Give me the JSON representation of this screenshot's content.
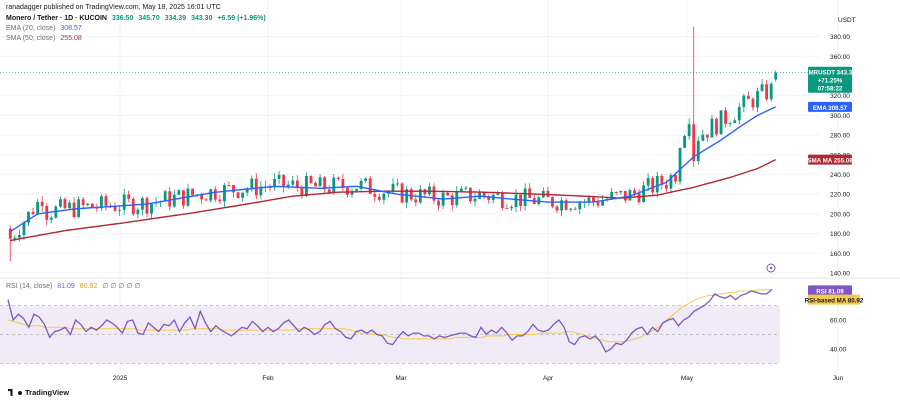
{
  "header": {
    "publisher": "ranadagger published on TradingView.com, May 18, 2025 16:01 UTC",
    "symbol": "Monero / Tether · 1D · KUCOIN",
    "ohlc": [
      "336.50",
      "345.70",
      "334.39",
      "343.30",
      "+6.59 (+1.96%)"
    ],
    "ema_label": "EMA (20, close)",
    "ema_value": "308.57",
    "sma_label": "SMA (50, close)",
    "sma_value": "255.08",
    "rsi_label": "RSI (14, close)",
    "rsi_value": "81.09",
    "rsi_ma_value": "80.92"
  },
  "price_axis": {
    "unit": "USDT",
    "ticks": [
      "380.00",
      "360.00",
      "320.00",
      "300.00",
      "280.00",
      "260.00",
      "240.00",
      "220.00",
      "200.00",
      "180.00",
      "160.00",
      "140.00"
    ]
  },
  "rsi_axis": {
    "ticks": [
      "60.00",
      "40.00"
    ]
  },
  "time_axis": {
    "labels": [
      "2025",
      "Feb",
      "Mar",
      "Apr",
      "May",
      "Jun"
    ]
  },
  "badges": {
    "price_symbol": "XMRUSDT",
    "price_value": "343.30",
    "price_change": "+71.25%",
    "price_countdown": "07:58:22",
    "ema_name": "EMA",
    "ema_value": "308.57",
    "sma_name": "SMA MA",
    "sma_value": "255.08",
    "rsi_name": "RSI",
    "rsi_value": "81.09",
    "rsi_ma_name": "RSI-based MA",
    "rsi_ma_value": "80.92"
  },
  "footer": {
    "brand": "TradingView"
  },
  "colors": {
    "up": "#089981",
    "down": "#f23645",
    "ema": "#2962ff",
    "sma": "#b22833",
    "rsi": "#7e57c2",
    "rsi_ma": "#f7c948",
    "rsi_band": "#ede7f6"
  },
  "chart_data": [
    {
      "type": "candlestick",
      "title": "Monero / Tether · 1D · KUCOIN",
      "ylabel": "USDT",
      "x_labels": [
        "2025",
        "Feb",
        "Mar",
        "Apr",
        "May",
        "Jun"
      ],
      "ylim": [
        140,
        390
      ],
      "series": [
        {
          "name": "EMA (20, close)",
          "points": [
            [
              0,
              182
            ],
            [
              6,
              200
            ],
            [
              14,
              205
            ],
            [
              30,
              210
            ],
            [
              45,
              222
            ],
            [
              58,
              228
            ],
            [
              68,
              226
            ],
            [
              76,
              228
            ],
            [
              85,
              220
            ],
            [
              95,
              215
            ],
            [
              103,
              218
            ],
            [
              110,
              215
            ],
            [
              118,
              212
            ],
            [
              128,
              212
            ],
            [
              136,
              218
            ],
            [
              144,
              232
            ],
            [
              150,
              258
            ],
            [
              156,
              275
            ],
            [
              160,
              288
            ],
            [
              164,
              300
            ],
            [
              168,
              308.57
            ]
          ]
        },
        {
          "name": "SMA (50, close)",
          "points": [
            [
              0,
              173
            ],
            [
              12,
              183
            ],
            [
              25,
              191
            ],
            [
              40,
              201
            ],
            [
              52,
              210
            ],
            [
              62,
              218
            ],
            [
              72,
              222
            ],
            [
              82,
              223
            ],
            [
              92,
              223
            ],
            [
              104,
              222
            ],
            [
              116,
              220
            ],
            [
              126,
              218
            ],
            [
              134,
              216
            ],
            [
              142,
              219
            ],
            [
              150,
              227
            ],
            [
              158,
              237
            ],
            [
              164,
              246
            ],
            [
              168,
              255.08
            ]
          ]
        }
      ],
      "candles_summary": {
        "start": {
          "date": "2024-12",
          "range": [
            165,
            240
          ]
        },
        "jan_high": 240,
        "feb_range": [
          195,
          248
        ],
        "mar_range": [
          200,
          235
        ],
        "apr_low": 185,
        "spike_high": 390,
        "last": {
          "open": 336.5,
          "high": 345.7,
          "low": 334.39,
          "close": 343.3
        }
      }
    },
    {
      "type": "line",
      "title": "RSI (14, close)",
      "ylim": [
        30,
        85
      ],
      "series": [
        {
          "name": "RSI",
          "values": [
            74,
            60,
            64,
            61,
            55,
            64,
            62,
            57,
            48,
            52,
            53,
            55,
            50,
            60,
            57,
            52,
            55,
            53,
            56,
            60,
            58,
            55,
            51,
            59,
            60,
            51,
            50,
            58,
            55,
            52,
            57,
            56,
            60,
            52,
            58,
            62,
            54,
            66,
            58,
            52,
            56,
            53,
            51,
            49,
            52,
            55,
            54,
            59,
            56,
            52,
            55,
            52,
            54,
            58,
            60,
            56,
            52,
            55,
            53,
            50,
            52,
            57,
            59,
            54,
            52,
            48,
            47,
            52,
            53,
            51,
            53,
            50,
            49,
            44,
            43,
            48,
            52,
            49,
            51,
            51,
            49,
            49,
            47,
            49,
            48,
            49,
            50,
            51,
            51,
            49,
            48,
            55,
            50,
            53,
            51,
            55,
            51,
            46,
            49,
            49,
            52,
            57,
            53,
            52,
            53,
            57,
            60,
            55,
            45,
            43,
            48,
            49,
            47,
            49,
            45,
            38,
            40,
            44,
            43,
            46,
            51,
            54,
            55,
            50,
            55,
            52,
            58,
            60,
            61,
            56,
            60,
            62,
            66,
            68,
            70,
            73,
            78,
            76,
            75,
            77,
            74,
            77,
            78,
            80,
            79,
            78,
            78,
            81.09
          ]
        },
        {
          "name": "RSI-based MA",
          "values": [
            60,
            59,
            58,
            57,
            56,
            56,
            56,
            55,
            55,
            55,
            55,
            55,
            54,
            54,
            54,
            54,
            54,
            54,
            54,
            54,
            54,
            54,
            54,
            54,
            54,
            53,
            53,
            53,
            53,
            53,
            53,
            53,
            53,
            53,
            53,
            54,
            54,
            54,
            54,
            54,
            54,
            53,
            53,
            53,
            53,
            53,
            53,
            53,
            53,
            53,
            53,
            53,
            53,
            53,
            53,
            54,
            54,
            54,
            54,
            54,
            54,
            54,
            54,
            54,
            54,
            53,
            52,
            51,
            51,
            50,
            50,
            50,
            49,
            48,
            48,
            47,
            47,
            47,
            47,
            47,
            47,
            47,
            47,
            47,
            47,
            48,
            48,
            48,
            48,
            48,
            48,
            49,
            49,
            49,
            49,
            50,
            50,
            50,
            50,
            50,
            50,
            51,
            51,
            51,
            51,
            51,
            52,
            52,
            51,
            50,
            49,
            48,
            47,
            46,
            45,
            45,
            45,
            45,
            46,
            47,
            48,
            50,
            52,
            54,
            57,
            60,
            63,
            66,
            69,
            71,
            73,
            75,
            76,
            77,
            77,
            78,
            78,
            79,
            79,
            80,
            80,
            80,
            80.5,
            80.8,
            80.9,
            80.92
          ]
        }
      ]
    }
  ]
}
